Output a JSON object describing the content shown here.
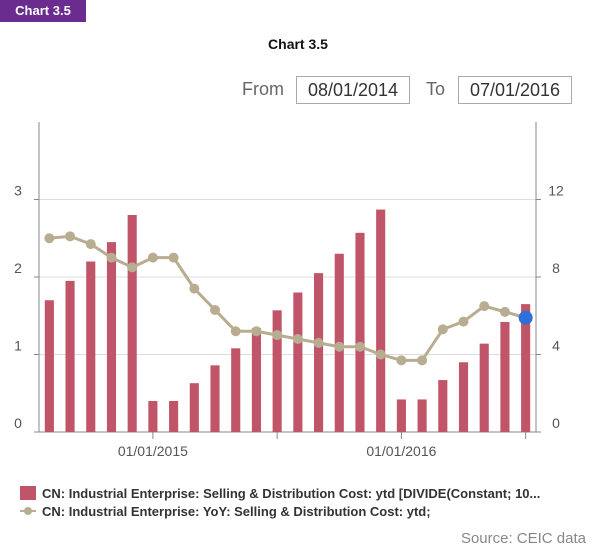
{
  "badge": "Chart 3.5",
  "range": {
    "from_label": "From",
    "from_value": "08/01/2014",
    "to_label": "To",
    "to_value": "07/01/2016"
  },
  "legend": {
    "bar_series": "CN: Industrial Enterprise: Selling & Distribution Cost: ytd [DIVIDE(Constant; 10...",
    "line_series": "CN: Industrial Enterprise: YoY: Selling & Distribution Cost: ytd;"
  },
  "source": "Source: CEIC data",
  "colors": {
    "bar": "#c05569",
    "line": "#b8ad90",
    "highlight": "#2e6fd8",
    "badge": "#6a2c8e"
  },
  "chart_data": {
    "type": "bar",
    "title": "Chart 3.5",
    "categories": [
      "2014-08",
      "2014-09",
      "2014-10",
      "2014-11",
      "2014-12",
      "2015-01",
      "2015-02",
      "2015-03",
      "2015-04",
      "2015-05",
      "2015-06",
      "2015-07",
      "2015-08",
      "2015-09",
      "2015-10",
      "2015-11",
      "2015-12",
      "2016-01",
      "2016-02",
      "2016-03",
      "2016-04",
      "2016-05",
      "2016-06",
      "2016-07"
    ],
    "x_tick_labels": [
      {
        "category": "2015-01",
        "label": "01/01/2015"
      },
      {
        "category": "2016-01",
        "label": "01/01/2016"
      }
    ],
    "y_left": {
      "ylim": [
        0,
        4
      ],
      "ticks": [
        0,
        1,
        2,
        3
      ]
    },
    "y_right": {
      "ylim": [
        0,
        16
      ],
      "ticks": [
        0,
        4,
        8,
        12
      ]
    },
    "series": [
      {
        "axis": "left",
        "kind": "bar",
        "values": [
          1.7,
          1.95,
          2.2,
          2.45,
          2.8,
          0.4,
          0.4,
          0.63,
          0.86,
          1.08,
          1.34,
          1.57,
          1.8,
          2.05,
          2.3,
          2.57,
          2.87,
          0.42,
          0.42,
          0.67,
          0.9,
          1.14,
          1.42,
          1.65
        ]
      },
      {
        "axis": "right",
        "kind": "line",
        "values": [
          10.0,
          10.1,
          9.7,
          9.0,
          8.5,
          9.0,
          9.0,
          7.4,
          6.3,
          5.2,
          5.2,
          5.0,
          4.8,
          4.6,
          4.4,
          4.4,
          4.0,
          3.7,
          3.7,
          5.3,
          5.7,
          6.5,
          6.2,
          5.9
        ]
      }
    ],
    "highlight_index": 23,
    "grid": true
  }
}
